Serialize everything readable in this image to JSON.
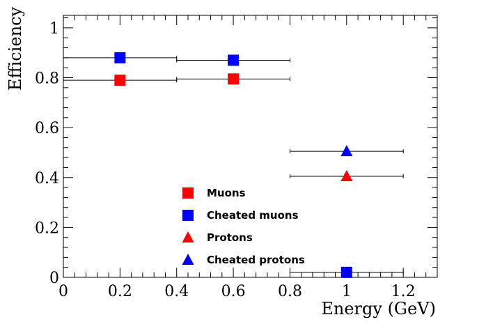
{
  "chart_data": {
    "type": "scatter",
    "xlabel": "Energy (GeV)",
    "ylabel": "Efficiency",
    "xlim": [
      0,
      1.32
    ],
    "ylim": [
      0,
      1.05
    ],
    "xticks": [
      {
        "value": 0,
        "label": "0"
      },
      {
        "value": 0.2,
        "label": "0.2"
      },
      {
        "value": 0.4,
        "label": "0.4"
      },
      {
        "value": 0.6,
        "label": "0.6"
      },
      {
        "value": 0.8,
        "label": "0.8"
      },
      {
        "value": 1.0,
        "label": "1"
      },
      {
        "value": 1.2,
        "label": "1.2"
      }
    ],
    "yticks": [
      {
        "value": 0,
        "label": "0"
      },
      {
        "value": 0.2,
        "label": "0.2"
      },
      {
        "value": 0.4,
        "label": "0.4"
      },
      {
        "value": 0.6,
        "label": "0.6"
      },
      {
        "value": 0.8,
        "label": "0.8"
      },
      {
        "value": 1.0,
        "label": "1"
      }
    ],
    "grid": false,
    "legend_position": "bottom-center",
    "series": [
      {
        "name": "Muons",
        "marker": "square",
        "color": "#ff0000",
        "points": [
          {
            "x": 0.2,
            "y": 0.79,
            "xerr": 0.2
          },
          {
            "x": 0.6,
            "y": 0.795,
            "xerr": 0.2
          }
        ]
      },
      {
        "name": "Cheated muons",
        "marker": "square",
        "color": "#0000ff",
        "points": [
          {
            "x": 0.2,
            "y": 0.88,
            "xerr": 0.2
          },
          {
            "x": 0.6,
            "y": 0.87,
            "xerr": 0.2
          },
          {
            "x": 1.0,
            "y": 0.02,
            "xerr": 0.2
          }
        ]
      },
      {
        "name": "Protons",
        "marker": "triangle",
        "color": "#ff0000",
        "points": [
          {
            "x": 1.0,
            "y": 0.405,
            "xerr": 0.2
          }
        ]
      },
      {
        "name": "Cheated protons",
        "marker": "triangle",
        "color": "#0000ff",
        "points": [
          {
            "x": 1.0,
            "y": 0.505,
            "xerr": 0.2
          }
        ]
      }
    ]
  }
}
